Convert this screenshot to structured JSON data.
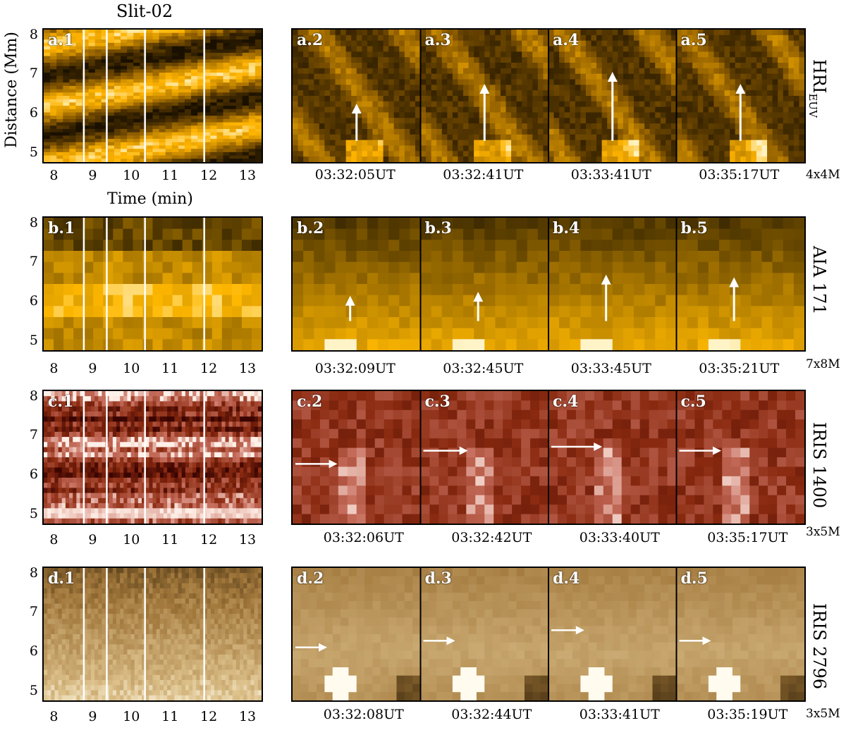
{
  "slit_title": "Slit-02",
  "ylabel": "Distance (Mm)",
  "xlabel": "Time (min)",
  "y_ticks": [
    "8",
    "7",
    "6",
    "5"
  ],
  "x_ticks": [
    "8",
    "9",
    "10",
    "11",
    "12",
    "13"
  ],
  "rows": [
    {
      "id": "a",
      "instrument": "HRI",
      "instrument_sub": "EUV",
      "scale": "4x4M",
      "labels": [
        "a.1",
        "a.2",
        "a.3",
        "a.4",
        "a.5"
      ],
      "times": [
        "03:32:05UT",
        "03:32:41UT",
        "03:33:41UT",
        "03:35:17UT"
      ],
      "colors": {
        "dark": "#1a1000",
        "mid": "#8a5a00",
        "bright": "#ffb400",
        "peak": "#fff2c0"
      }
    },
    {
      "id": "b",
      "instrument": "AIA 171",
      "instrument_sub": "",
      "scale": "7x8M",
      "labels": [
        "b.1",
        "b.2",
        "b.3",
        "b.4",
        "b.5"
      ],
      "times": [
        "03:32:09UT",
        "03:32:45UT",
        "03:33:45UT",
        "03:35:21UT"
      ],
      "colors": {
        "dark": "#2a1c00",
        "mid": "#9a6c00",
        "bright": "#ffb800",
        "peak": "#fff4c8"
      }
    },
    {
      "id": "c",
      "instrument": "IRIS 1400",
      "instrument_sub": "",
      "scale": "3x5M",
      "labels": [
        "c.1",
        "c.2",
        "c.3",
        "c.4",
        "c.5"
      ],
      "times": [
        "03:32:06UT",
        "03:32:42UT",
        "03:33:40UT",
        "03:35:17UT"
      ],
      "colors": {
        "dark": "#3a0400",
        "mid": "#8a2a10",
        "bright": "#c87060",
        "peak": "#fff0e8"
      }
    },
    {
      "id": "d",
      "instrument": "IRIS 2796",
      "instrument_sub": "",
      "scale": "3x5M",
      "labels": [
        "d.1",
        "d.2",
        "d.3",
        "d.4",
        "d.5"
      ],
      "times": [
        "03:32:08UT",
        "03:32:44UT",
        "03:33:41UT",
        "03:35:19UT"
      ],
      "colors": {
        "dark": "#2a1c06",
        "mid": "#a0763a",
        "bright": "#dcc08a",
        "peak": "#fffbee"
      }
    }
  ],
  "time_markers_min": [
    8.75,
    9.35,
    10.35,
    11.9
  ]
}
